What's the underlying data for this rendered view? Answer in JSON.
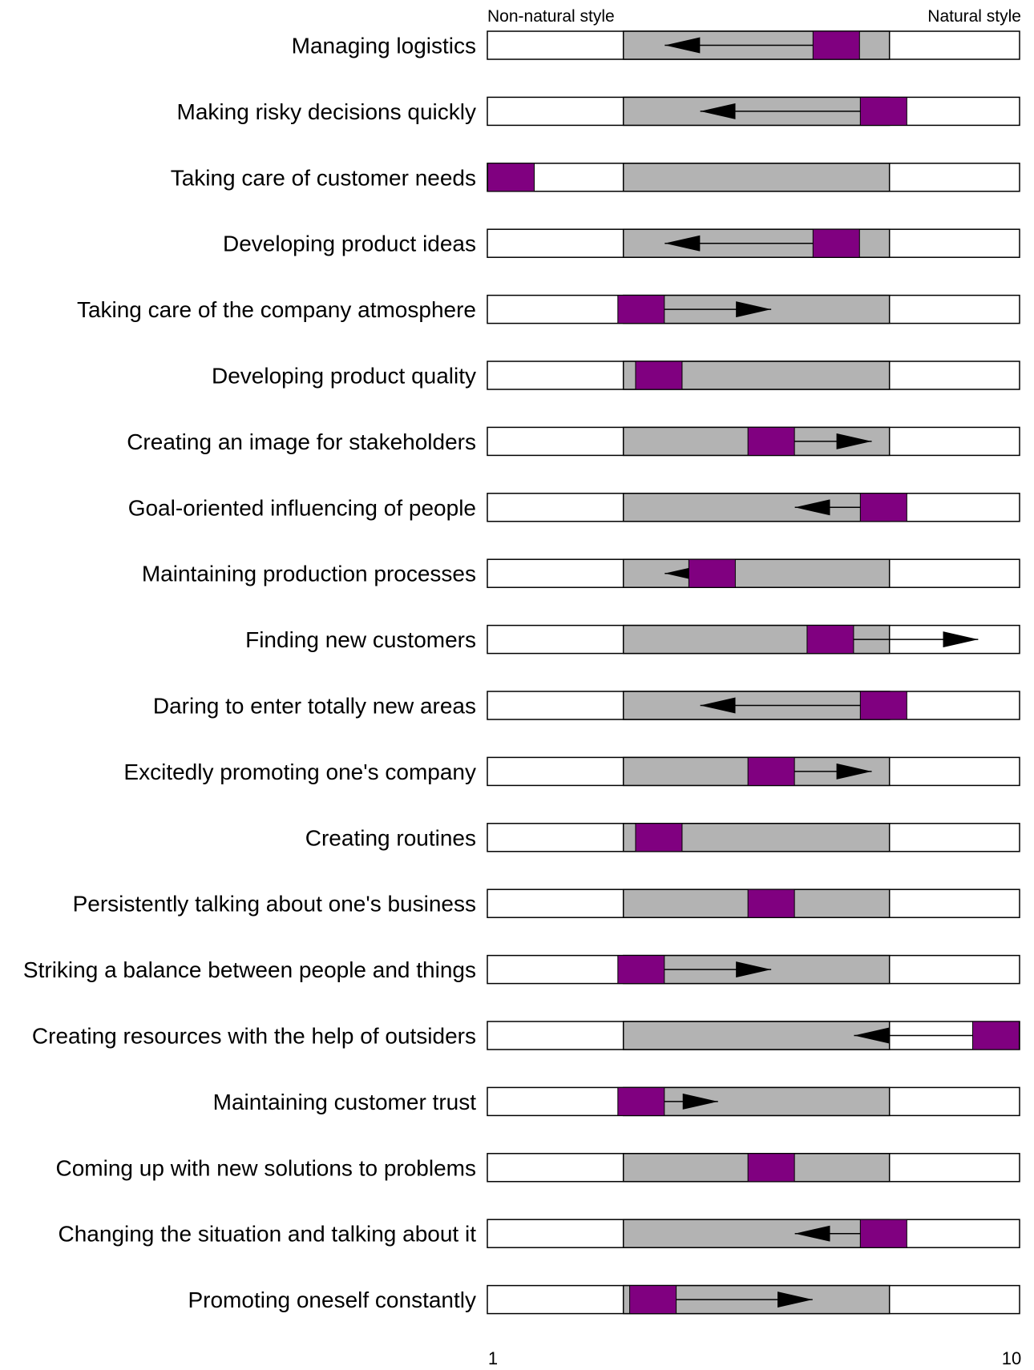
{
  "chart_data": {
    "type": "bar",
    "header": {
      "left": "Non-natural style",
      "right": "Natural style"
    },
    "x_ticks": [
      "1",
      "10"
    ],
    "xlim": [
      1,
      10
    ],
    "colors": {
      "band": "#b3b3b3",
      "marker": "#800080",
      "frame": "#000000",
      "background": "#ffffff"
    },
    "band_range": [
      3.3,
      7.8
    ],
    "rows": [
      {
        "label": "Managing logistics",
        "value": 6.9,
        "arrow_to": 4.0
      },
      {
        "label": "Making risky decisions quickly",
        "value": 7.7,
        "arrow_to": 4.6
      },
      {
        "label": "Taking care of customer needs",
        "value": 1.4,
        "arrow_to": null
      },
      {
        "label": "Developing product ideas",
        "value": 6.9,
        "arrow_to": 4.0
      },
      {
        "label": "Taking care of the company atmosphere",
        "value": 3.6,
        "arrow_to": 5.8
      },
      {
        "label": "Developing product quality",
        "value": 3.9,
        "arrow_to": null
      },
      {
        "label": "Creating an image for stakeholders",
        "value": 5.8,
        "arrow_to": 7.5
      },
      {
        "label": "Goal-oriented influencing of people",
        "value": 7.7,
        "arrow_to": 6.2
      },
      {
        "label": "Maintaining production processes",
        "value": 4.8,
        "arrow_to": 4.0
      },
      {
        "label": "Finding new customers",
        "value": 6.8,
        "arrow_to": 9.3
      },
      {
        "label": "Daring to enter totally new areas",
        "value": 7.7,
        "arrow_to": 4.6
      },
      {
        "label": "Excitedly promoting one's company",
        "value": 5.8,
        "arrow_to": 7.5
      },
      {
        "label": "Creating routines",
        "value": 3.9,
        "arrow_to": null
      },
      {
        "label": "Persistently talking about one's business",
        "value": 5.8,
        "arrow_to": null
      },
      {
        "label": "Striking a balance between people and things",
        "value": 3.6,
        "arrow_to": 5.8
      },
      {
        "label": "Creating resources with the help of outsiders",
        "value": 9.6,
        "arrow_to": 7.2
      },
      {
        "label": "Maintaining customer trust",
        "value": 3.6,
        "arrow_to": 4.9
      },
      {
        "label": "Coming up with new solutions to problems",
        "value": 5.8,
        "arrow_to": null
      },
      {
        "label": "Changing the situation and talking about it",
        "value": 7.7,
        "arrow_to": 6.2
      },
      {
        "label": "Promoting oneself constantly",
        "value": 3.8,
        "arrow_to": 6.5
      }
    ]
  }
}
